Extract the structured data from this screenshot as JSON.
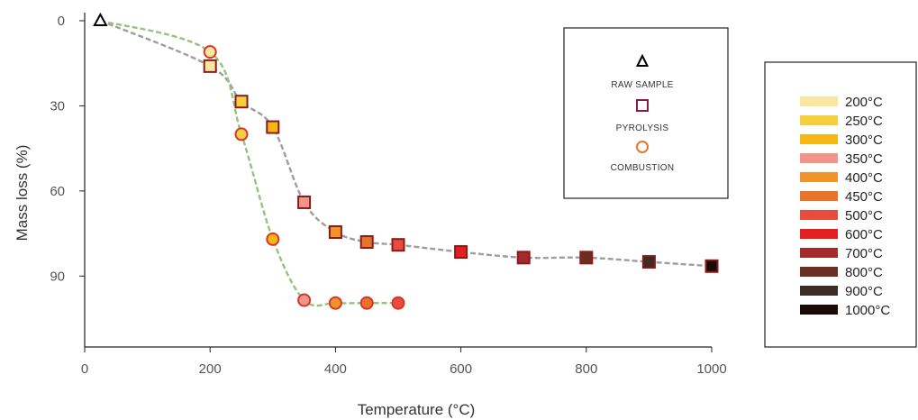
{
  "chart_data": {
    "type": "scatter",
    "title": "",
    "xlabel": "Temperature (°C)",
    "ylabel": "Mass loss (%)",
    "xlim": [
      0,
      1000
    ],
    "ylim": [
      0,
      115
    ],
    "y_inverted": true,
    "x_ticks": [
      "0",
      "200",
      "400",
      "600",
      "800",
      "1000"
    ],
    "y_ticks": [
      "0",
      "30",
      "60",
      "90"
    ],
    "grid": false,
    "series": [
      {
        "name": "RAW SAMPLE",
        "marker": "triangle",
        "color": "#000000",
        "points": [
          {
            "x": 25,
            "y": 0
          }
        ]
      },
      {
        "name": "PYROLYSIS",
        "marker": "square",
        "line_color": "#9e9e9e",
        "points": [
          {
            "x": 25,
            "y": 0,
            "temp": "raw"
          },
          {
            "x": 200,
            "y": 16,
            "temp": "200°C"
          },
          {
            "x": 250,
            "y": 28.5,
            "temp": "250°C"
          },
          {
            "x": 300,
            "y": 37.5,
            "temp": "300°C"
          },
          {
            "x": 350,
            "y": 64,
            "temp": "350°C"
          },
          {
            "x": 400,
            "y": 74.5,
            "temp": "400°C"
          },
          {
            "x": 450,
            "y": 78,
            "temp": "450°C"
          },
          {
            "x": 500,
            "y": 79,
            "temp": "500°C"
          },
          {
            "x": 600,
            "y": 81.5,
            "temp": "600°C"
          },
          {
            "x": 700,
            "y": 83.5,
            "temp": "700°C"
          },
          {
            "x": 800,
            "y": 83.5,
            "temp": "800°C"
          },
          {
            "x": 900,
            "y": 85,
            "temp": "900°C"
          },
          {
            "x": 1000,
            "y": 86.5,
            "temp": "1000°C"
          }
        ]
      },
      {
        "name": "COMBUSTION",
        "marker": "circle",
        "line_color": "#93c47d",
        "points": [
          {
            "x": 25,
            "y": 0,
            "temp": "raw"
          },
          {
            "x": 200,
            "y": 11,
            "temp": "200°C"
          },
          {
            "x": 250,
            "y": 40,
            "temp": "250°C"
          },
          {
            "x": 300,
            "y": 77,
            "temp": "300°C"
          },
          {
            "x": 350,
            "y": 98.5,
            "temp": "350°C"
          },
          {
            "x": 400,
            "y": 99.5,
            "temp": "400°C"
          },
          {
            "x": 450,
            "y": 99.5,
            "temp": "450°C"
          },
          {
            "x": 500,
            "y": 99.5,
            "temp": "500°C"
          }
        ]
      }
    ],
    "marker_legend": [
      "RAW SAMPLE",
      "PYROLYSIS",
      "COMBUSTION"
    ],
    "temperature_colors": [
      {
        "label": "200°C",
        "fill": "#f9e79f"
      },
      {
        "label": "250°C",
        "fill": "#f4d03f"
      },
      {
        "label": "300°C",
        "fill": "#f5b716"
      },
      {
        "label": "350°C",
        "fill": "#f1948a"
      },
      {
        "label": "400°C",
        "fill": "#f0932b"
      },
      {
        "label": "450°C",
        "fill": "#e8742a"
      },
      {
        "label": "500°C",
        "fill": "#e74c3c"
      },
      {
        "label": "600°C",
        "fill": "#e31f1f"
      },
      {
        "label": "700°C",
        "fill": "#a52a2a"
      },
      {
        "label": "800°C",
        "fill": "#6b2e23"
      },
      {
        "label": "900°C",
        "fill": "#3d2b26"
      },
      {
        "label": "1000°C",
        "fill": "#1a0a06"
      }
    ],
    "marker_colors": {
      "square_border": "#8b1a1a",
      "circle_border": "#d9342b",
      "raw_triangle": "#000000"
    }
  }
}
